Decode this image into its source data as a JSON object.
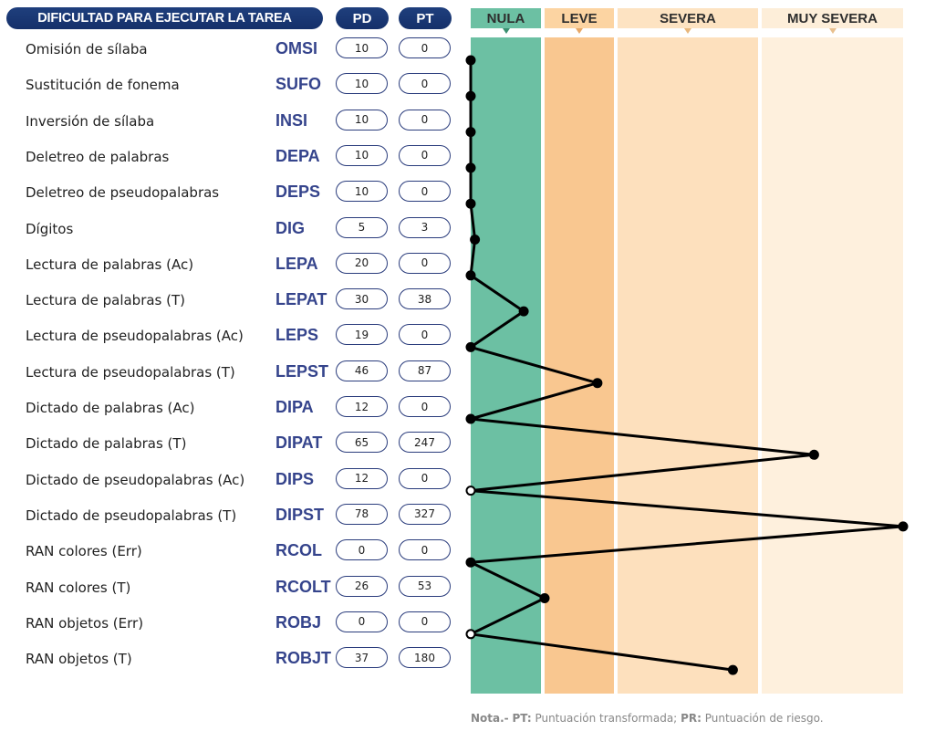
{
  "header": {
    "title": "DIFICULTAD PARA EJECUTAR LA TAREA",
    "pd_label": "PD",
    "pt_label": "PT"
  },
  "bands": [
    {
      "label": "NULA",
      "color": "#6cc0a3",
      "head_color": "#6cc0a3",
      "arrow_color": "#3a8f70"
    },
    {
      "label": "LEVE",
      "color": "#f9c790",
      "head_color": "#fcd4a2",
      "arrow_color": "#e8a867"
    },
    {
      "label": "SEVERA",
      "color": "#fde0bd",
      "head_color": "#fde3c2",
      "arrow_color": "#e8b77c"
    },
    {
      "label": "MUY SEVERA",
      "color": "#fef0dd",
      "head_color": "#fdeed9",
      "arrow_color": "#e8c08f"
    }
  ],
  "chart_data": {
    "type": "line",
    "title": "DIFICULTAD PARA EJECUTAR LA TAREA",
    "xlabel": "PT",
    "x_range": [
      0,
      327
    ],
    "band_bounds": [
      0,
      53,
      100,
      200,
      327
    ],
    "rows": [
      {
        "name": "Omisión de sílaba",
        "code": "OMSI",
        "pd": 10,
        "pt": 0
      },
      {
        "name": "Sustitución de fonema",
        "code": "SUFO",
        "pd": 10,
        "pt": 0
      },
      {
        "name": "Inversión de sílaba",
        "code": "INSI",
        "pd": 10,
        "pt": 0
      },
      {
        "name": "Deletreo de palabras",
        "code": "DEPA",
        "pd": 10,
        "pt": 0
      },
      {
        "name": "Deletreo de pseudopalabras",
        "code": "DEPS",
        "pd": 10,
        "pt": 0
      },
      {
        "name": "Dígitos",
        "code": "DIG",
        "pd": 5,
        "pt": 3
      },
      {
        "name": "Lectura de palabras (Ac)",
        "code": "LEPA",
        "pd": 20,
        "pt": 0
      },
      {
        "name": "Lectura de palabras (T)",
        "code": "LEPAT",
        "pd": 30,
        "pt": 38
      },
      {
        "name": "Lectura de pseudopalabras (Ac)",
        "code": "LEPS",
        "pd": 19,
        "pt": 0
      },
      {
        "name": "Lectura de pseudopalabras (T)",
        "code": "LEPST",
        "pd": 46,
        "pt": 87
      },
      {
        "name": "Dictado de palabras (Ac)",
        "code": "DIPA",
        "pd": 12,
        "pt": 0
      },
      {
        "name": "Dictado de palabras (T)",
        "code": "DIPAT",
        "pd": 65,
        "pt": 247
      },
      {
        "name": "Dictado de pseudopalabras (Ac)",
        "code": "DIPS",
        "pd": 12,
        "pt": 0
      },
      {
        "name": "Dictado de pseudopalabras (T)",
        "code": "DIPST",
        "pd": 78,
        "pt": 327
      },
      {
        "name": "RAN colores (Err)",
        "code": "RCOL",
        "pd": 0,
        "pt": 0
      },
      {
        "name": "RAN colores (T)",
        "code": "RCOLT",
        "pd": 26,
        "pt": 53
      },
      {
        "name": "RAN objetos (Err)",
        "code": "ROBJ",
        "pd": 0,
        "pt": 0
      },
      {
        "name": "RAN objetos (T)",
        "code": "ROBJT",
        "pd": 37,
        "pt": 180
      }
    ]
  },
  "note": {
    "prefix": "Nota.-",
    "pt_key": "PT:",
    "pt_text": " Puntuación transformada;",
    "pr_key": "PR:",
    "pr_text": " Puntuación de riesgo."
  }
}
